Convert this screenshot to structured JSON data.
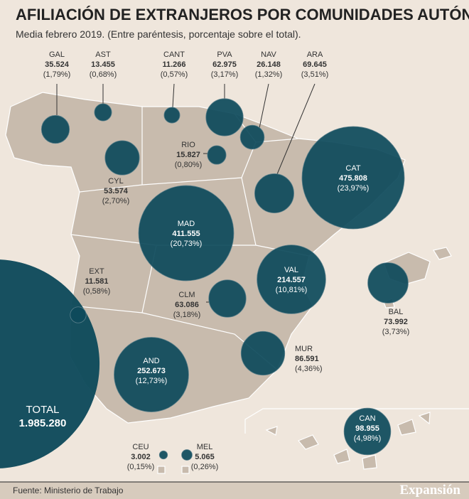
{
  "chart_data": {
    "type": "bubble-map",
    "title": "AFILIACIÓN DE EXTRANJEROS POR COMUNIDADES AUTÓNOMAS",
    "subtitle": "Media febrero 2019. (Entre paréntesis, porcentaje sobre el total).",
    "categories": [
      "GAL",
      "AST",
      "CANT",
      "PVA",
      "NAV",
      "ARA",
      "RIO",
      "CYL",
      "CAT",
      "MAD",
      "EXT",
      "CLM",
      "VAL",
      "BAL",
      "AND",
      "MUR",
      "CAN",
      "CEU",
      "MEL"
    ],
    "values": [
      35524,
      13455,
      11266,
      62975,
      26148,
      69645,
      15827,
      53574,
      475808,
      411555,
      11581,
      63086,
      214557,
      73992,
      252673,
      86591,
      98955,
      3002,
      5065
    ],
    "value_labels": [
      "35.524",
      "13.455",
      "11.266",
      "62.975",
      "26.148",
      "69.645",
      "15.827",
      "53.574",
      "475.808",
      "411.555",
      "11.581",
      "63.086",
      "214.557",
      "73.992",
      "252.673",
      "86.591",
      "98.955",
      "3.002",
      "5.065"
    ],
    "shares": [
      1.79,
      0.68,
      0.57,
      3.17,
      1.32,
      3.51,
      0.8,
      2.7,
      23.97,
      20.73,
      0.58,
      3.18,
      10.81,
      3.73,
      12.73,
      4.36,
      4.98,
      0.15,
      0.26
    ],
    "share_labels": [
      "(1,79%)",
      "(0,68%)",
      "(0,57%)",
      "(3,17%)",
      "(1,32%)",
      "(3,51%)",
      "(0,80%)",
      "(2,70%)",
      "(23,97%)",
      "(20,73%)",
      "(0,58%)",
      "(3,18%)",
      "(10,81%)",
      "(3,73%)",
      "(12,73%)",
      "(4,36%)",
      "(4,98%)",
      "(0,15%)",
      "(0,26%)"
    ],
    "total_label": "TOTAL",
    "total": 1985280,
    "total_value_label": "1.985.280",
    "color": "#0e4a5b",
    "source": "Fuente: Ministerio de Trabajo",
    "brand": "Expansión"
  }
}
